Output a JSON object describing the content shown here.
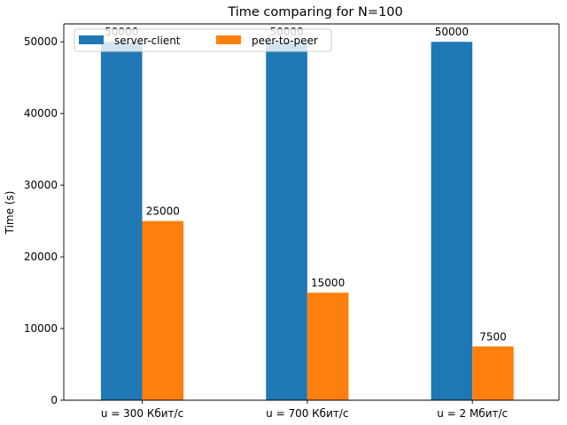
{
  "chart_data": {
    "type": "bar",
    "title": "Time comparing for N=100",
    "xlabel": "",
    "ylabel": "Time (s)",
    "ylim": [
      0,
      52500
    ],
    "yticks": [
      0,
      10000,
      20000,
      30000,
      40000,
      50000
    ],
    "categories": [
      "u = 300 Кбит/с",
      "u = 700 Кбит/с",
      "u = 2 Мбит/с"
    ],
    "series": [
      {
        "name": "server-client",
        "values": [
          50000,
          50000,
          50000
        ],
        "color": "#1f77b4"
      },
      {
        "name": "peer-to-peer",
        "values": [
          25000,
          15000,
          7500
        ],
        "color": "#ff7f0e"
      }
    ],
    "grid": false,
    "legend_position": "top-left"
  }
}
